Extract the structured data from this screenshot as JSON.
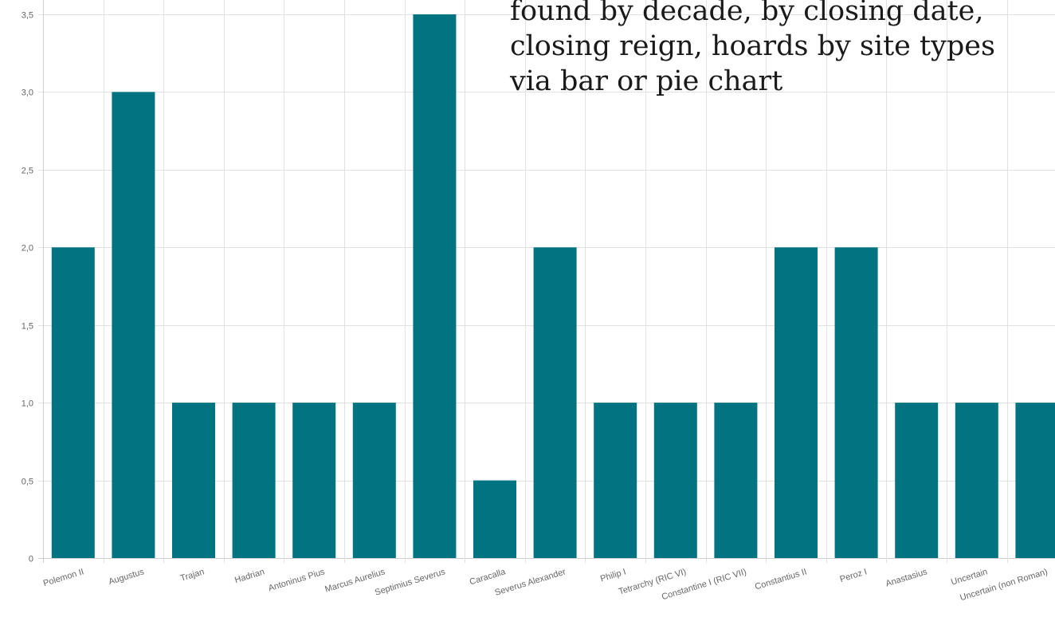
{
  "caption": {
    "lines": [
      "found by decade, by closing date,",
      "closing reign, hoards by site types",
      "via bar or pie chart"
    ]
  },
  "colors": {
    "bar": "#027381",
    "grid": "#e2e2e2",
    "axis": "#cfcfcf",
    "tick_text": "#666666"
  },
  "chart_data": {
    "type": "bar",
    "categories": [
      "Polemon II",
      "Augustus",
      "Trajan",
      "Hadrian",
      "Antoninus Pius",
      "Marcus Aurelius",
      "Septimius Severus",
      "Caracalla",
      "Severus Alexander",
      "Philip I",
      "Tetrarchy (RIC VI)",
      "Constantine I (RIC VII)",
      "Constantius II",
      "Peroz I",
      "Anastasius",
      "Uncertain",
      "Uncertain (non Roman)"
    ],
    "values": [
      2,
      3,
      1,
      1,
      1,
      1,
      3.5,
      0.5,
      2,
      1,
      1,
      1,
      2,
      2,
      1,
      1,
      1
    ],
    "yticks": [
      "0",
      "0,5",
      "1,0",
      "1,5",
      "2,0",
      "2,5",
      "3,0",
      "3,5"
    ],
    "ylim": [
      0,
      3.5
    ],
    "grid": true,
    "legend": "none"
  }
}
